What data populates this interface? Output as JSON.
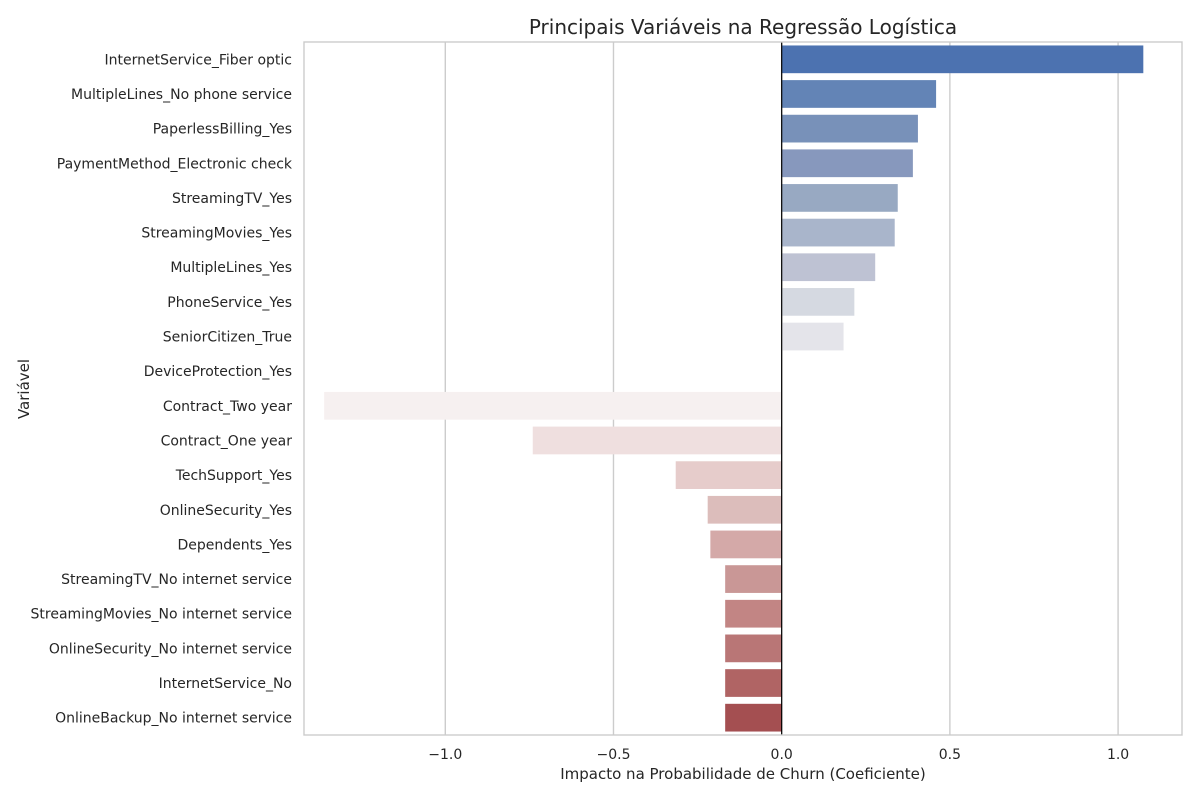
{
  "chart_data": {
    "type": "bar",
    "orientation": "horizontal",
    "title": "Principais Variáveis na Regressão Logística",
    "xlabel": "Impacto na Probabilidade de Churn (Coeficiente)",
    "ylabel": "Variável",
    "xlim": [
      -1.42,
      1.19
    ],
    "xticks": [
      -1.0,
      -0.5,
      0.0,
      0.5,
      1.0
    ],
    "xtick_labels": [
      "−1.0",
      "−0.5",
      "0.0",
      "0.5",
      "1.0"
    ],
    "grid": "vertical",
    "zero_line": true,
    "categories": [
      "InternetService_Fiber optic",
      "MultipleLines_No phone service",
      "PaperlessBilling_Yes",
      "PaymentMethod_Electronic check",
      "StreamingTV_Yes",
      "StreamingMovies_Yes",
      "MultipleLines_Yes",
      "PhoneService_Yes",
      "SeniorCitizen_True",
      "DeviceProtection_Yes",
      "Contract_Two year",
      "Contract_One year",
      "TechSupport_Yes",
      "OnlineSecurity_Yes",
      "Dependents_Yes",
      "StreamingTV_No internet service",
      "StreamingMovies_No internet service",
      "OnlineSecurity_No internet service",
      "InternetService_No",
      "OnlineBackup_No internet service"
    ],
    "values": [
      1.075,
      0.459,
      0.405,
      0.39,
      0.345,
      0.336,
      0.278,
      0.216,
      0.184,
      0.0,
      -1.36,
      -0.74,
      -0.315,
      -0.22,
      -0.212,
      -0.168,
      -0.168,
      -0.168,
      -0.168,
      -0.168
    ],
    "colors": [
      "#4c72b0",
      "#6384b6",
      "#7891b9",
      "#8798bd",
      "#98a9c2",
      "#a9b5cb",
      "#bec2d3",
      "#d5d9e1",
      "#e4e4ea",
      "#f1eff1",
      "#f6f0f0",
      "#efdfdf",
      "#e6cccb",
      "#dcbdbb",
      "#d4a9a8",
      "#c99796",
      "#c28584",
      "#b97676",
      "#b06464",
      "#a44f51"
    ]
  }
}
